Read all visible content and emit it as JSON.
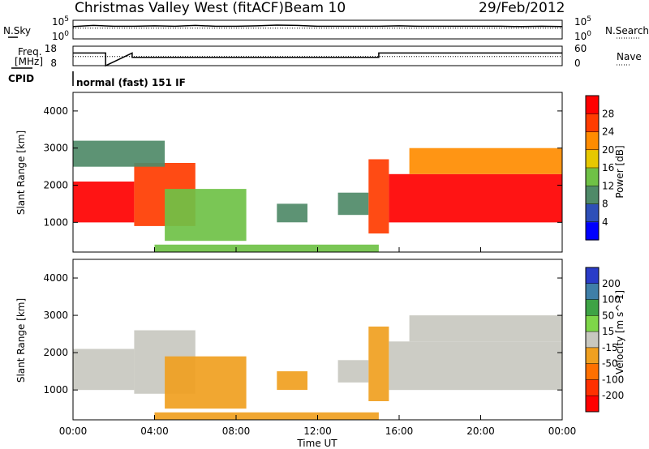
{
  "header": {
    "station": "Christmas Valley West (fitACF)",
    "beam": "Beam 10",
    "date": "29/Feb/2012"
  },
  "side_labels": {
    "nsky": "N.Sky",
    "nsearch": "N.Search",
    "freq_line1": "Freq.",
    "freq_line2": "[MHz]",
    "nave": "Nave",
    "cpid": "CPID"
  },
  "cpid_text": "normal (fast) 151 IF",
  "noise_left_ticks": [
    "10^5",
    "10^0"
  ],
  "noise_right_ticks": [
    "10^5",
    "10^0"
  ],
  "freq_left_ticks": [
    "18",
    "8"
  ],
  "nave_right_ticks": [
    "60",
    "0"
  ],
  "x_axis_label": "Time UT",
  "chart_data": [
    {
      "type": "line",
      "panel": "noise",
      "x": [
        0,
        1,
        2,
        3,
        4,
        5,
        6,
        7,
        8,
        9,
        10,
        11,
        12,
        13,
        14,
        15,
        16,
        17,
        18,
        19,
        20,
        21,
        22,
        23,
        24
      ],
      "series": [
        {
          "name": "N.Sky",
          "values": [
            3.3,
            3.6,
            3.4,
            3.4,
            3.5,
            3.4,
            3.6,
            3.4,
            3.4,
            3.5,
            3.7,
            3.6,
            3.4,
            3.4,
            3.4,
            3.4,
            3.5,
            3.4,
            3.4,
            3.4,
            3.4,
            3.4,
            3.3,
            3.4,
            3.3
          ]
        },
        {
          "name": "N.Search",
          "values": [
            2.9,
            2.9,
            2.9,
            2.9,
            2.9,
            2.9,
            2.9,
            2.9,
            2.9,
            2.9,
            2.9,
            2.9,
            2.9,
            2.9,
            2.9,
            2.9,
            2.9,
            2.9,
            2.9,
            2.9,
            2.9,
            2.9,
            2.9,
            2.9,
            2.9
          ]
        }
      ],
      "xlim": [
        0,
        24
      ],
      "ylim": [
        0,
        5
      ]
    },
    {
      "type": "line",
      "panel": "frequency",
      "x": [
        0,
        1.6,
        1.6,
        2.9,
        2.9,
        15.0,
        15.0,
        24
      ],
      "series": [
        {
          "name": "Freq.",
          "values": [
            14.5,
            14.5,
            8,
            14.5,
            12.3,
            12.3,
            14.5,
            14.5
          ]
        },
        {
          "name": "Nave",
          "values": [
            28,
            28,
            28,
            28,
            28,
            28,
            28,
            28
          ]
        }
      ],
      "xlim": [
        0,
        24
      ],
      "ylim": [
        8,
        18
      ],
      "y2lim": [
        0,
        60
      ]
    },
    {
      "type": "heatmap",
      "title": "",
      "xlabel": "Time UT",
      "ylabel": "Slant Range [km]",
      "xlim": [
        0,
        24
      ],
      "ylim": [
        200,
        4500
      ],
      "x_ticks": [
        "00:00",
        "04:00",
        "08:00",
        "12:00",
        "16:00",
        "20:00",
        "00:00"
      ],
      "y_ticks": [
        "1000",
        "2000",
        "3000",
        "4000"
      ],
      "colorbar": {
        "label": "Power [dB]",
        "ticks": [
          "4",
          "8",
          "12",
          "16",
          "20",
          "24",
          "28"
        ],
        "colors": [
          "#0000ff",
          "#2e4fb8",
          "#4f8a68",
          "#6fc146",
          "#e6c800",
          "#ff8c00",
          "#ff3c00",
          "#ff0000"
        ]
      },
      "regions": [
        {
          "t0": 0.0,
          "t1": 3.0,
          "r0": 1000,
          "r1": 2100,
          "level": 28
        },
        {
          "t0": 3.0,
          "t1": 6.0,
          "r0": 900,
          "r1": 2600,
          "level": 24
        },
        {
          "t0": 4.5,
          "t1": 8.5,
          "r0": 500,
          "r1": 1900,
          "level": 12
        },
        {
          "t0": 0.0,
          "t1": 4.5,
          "r0": 2500,
          "r1": 3200,
          "level": 8
        },
        {
          "t0": 10.0,
          "t1": 11.5,
          "r0": 1000,
          "r1": 1500,
          "level": 8
        },
        {
          "t0": 13.0,
          "t1": 14.5,
          "r0": 1200,
          "r1": 1800,
          "level": 8
        },
        {
          "t0": 14.5,
          "t1": 15.5,
          "r0": 700,
          "r1": 2700,
          "level": 24
        },
        {
          "t0": 15.5,
          "t1": 24.0,
          "r0": 1000,
          "r1": 2300,
          "level": 28
        },
        {
          "t0": 16.5,
          "t1": 24.0,
          "r0": 2300,
          "r1": 3000,
          "level": 20
        },
        {
          "t0": 4.0,
          "t1": 15.0,
          "r0": 200,
          "r1": 400,
          "level": 12
        }
      ]
    },
    {
      "type": "heatmap",
      "title": "",
      "xlabel": "Time UT",
      "ylabel": "Slant Range [km]",
      "xlim": [
        0,
        24
      ],
      "ylim": [
        200,
        4500
      ],
      "x_ticks": [
        "00:00",
        "04:00",
        "08:00",
        "12:00",
        "16:00",
        "20:00",
        "00:00"
      ],
      "y_ticks": [
        "1000",
        "2000",
        "3000",
        "4000"
      ],
      "colorbar": {
        "label": "Velocity [m s^-1]",
        "ticks": [
          "200",
          "100",
          "50",
          "15",
          "-15",
          "-50",
          "-100",
          "-200"
        ],
        "colors": [
          "#2a3cc8",
          "#3f7fa8",
          "#3ea345",
          "#7ed649",
          "#c8c8c0",
          "#f0a020",
          "#ff7000",
          "#ff3000",
          "#ff0000"
        ]
      },
      "regions": [
        {
          "t0": 0.0,
          "t1": 3.0,
          "r0": 1000,
          "r1": 2100,
          "level": 0
        },
        {
          "t0": 3.0,
          "t1": 6.0,
          "r0": 900,
          "r1": 2600,
          "level": 0
        },
        {
          "t0": 4.5,
          "t1": 8.5,
          "r0": 500,
          "r1": 1900,
          "level": -50
        },
        {
          "t0": 10.0,
          "t1": 11.5,
          "r0": 1000,
          "r1": 1500,
          "level": -50
        },
        {
          "t0": 13.0,
          "t1": 14.5,
          "r0": 1200,
          "r1": 1800,
          "level": 0
        },
        {
          "t0": 14.5,
          "t1": 15.5,
          "r0": 700,
          "r1": 2700,
          "level": -50
        },
        {
          "t0": 15.5,
          "t1": 24.0,
          "r0": 1000,
          "r1": 2300,
          "level": 0
        },
        {
          "t0": 16.5,
          "t1": 24.0,
          "r0": 2300,
          "r1": 3000,
          "level": 0
        },
        {
          "t0": 4.0,
          "t1": 15.0,
          "r0": 200,
          "r1": 400,
          "level": -50
        }
      ]
    }
  ]
}
